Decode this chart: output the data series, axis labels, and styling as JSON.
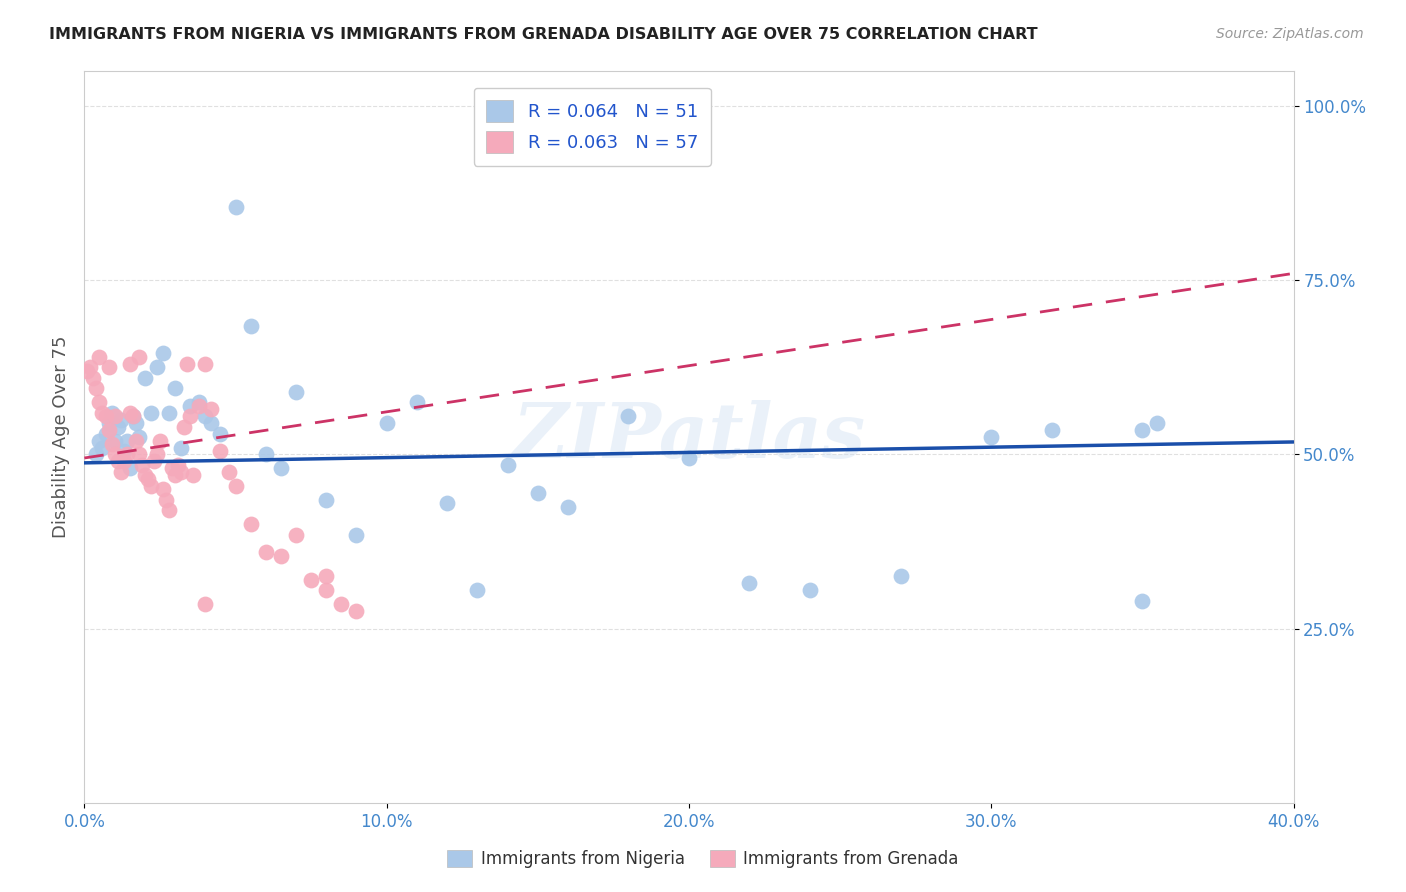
{
  "title": "IMMIGRANTS FROM NIGERIA VS IMMIGRANTS FROM GRENADA DISABILITY AGE OVER 75 CORRELATION CHART",
  "source": "Source: ZipAtlas.com",
  "ylabel": "Disability Age Over 75",
  "xlim": [
    0.0,
    0.4
  ],
  "ylim": [
    0.0,
    1.05
  ],
  "xtick_labels": [
    "0.0%",
    "10.0%",
    "20.0%",
    "30.0%",
    "40.0%"
  ],
  "xtick_values": [
    0.0,
    0.1,
    0.2,
    0.3,
    0.4
  ],
  "ytick_labels": [
    "25.0%",
    "50.0%",
    "75.0%",
    "100.0%"
  ],
  "ytick_values": [
    0.25,
    0.5,
    0.75,
    1.0
  ],
  "nigeria_color": "#aac8e8",
  "nigeria_line_color": "#1a4faa",
  "grenada_color": "#f5aabb",
  "grenada_line_color": "#cc3366",
  "nigeria_R": 0.064,
  "nigeria_N": 51,
  "grenada_R": 0.063,
  "grenada_N": 57,
  "nigeria_line_x0": 0.0,
  "nigeria_line_x1": 0.4,
  "nigeria_line_y0": 0.488,
  "nigeria_line_y1": 0.518,
  "grenada_line_x0": 0.0,
  "grenada_line_x1": 0.4,
  "grenada_line_y0": 0.495,
  "grenada_line_y1": 0.76,
  "nigeria_scatter_x": [
    0.004,
    0.005,
    0.006,
    0.007,
    0.008,
    0.009,
    0.01,
    0.011,
    0.012,
    0.013,
    0.014,
    0.015,
    0.016,
    0.017,
    0.018,
    0.02,
    0.022,
    0.024,
    0.026,
    0.028,
    0.03,
    0.032,
    0.035,
    0.038,
    0.04,
    0.042,
    0.045,
    0.05,
    0.055,
    0.06,
    0.065,
    0.07,
    0.08,
    0.09,
    0.1,
    0.11,
    0.12,
    0.13,
    0.14,
    0.15,
    0.16,
    0.18,
    0.2,
    0.22,
    0.24,
    0.27,
    0.3,
    0.32,
    0.35,
    0.35,
    0.355
  ],
  "nigeria_scatter_y": [
    0.5,
    0.52,
    0.51,
    0.53,
    0.545,
    0.56,
    0.52,
    0.54,
    0.55,
    0.505,
    0.52,
    0.48,
    0.555,
    0.545,
    0.525,
    0.61,
    0.56,
    0.625,
    0.645,
    0.56,
    0.595,
    0.51,
    0.57,
    0.575,
    0.555,
    0.545,
    0.53,
    0.855,
    0.685,
    0.5,
    0.48,
    0.59,
    0.435,
    0.385,
    0.545,
    0.575,
    0.43,
    0.305,
    0.485,
    0.445,
    0.425,
    0.555,
    0.495,
    0.315,
    0.305,
    0.325,
    0.525,
    0.535,
    0.29,
    0.535,
    0.545
  ],
  "grenada_scatter_x": [
    0.001,
    0.002,
    0.003,
    0.004,
    0.005,
    0.005,
    0.006,
    0.007,
    0.008,
    0.008,
    0.009,
    0.01,
    0.01,
    0.011,
    0.012,
    0.013,
    0.014,
    0.015,
    0.015,
    0.016,
    0.017,
    0.018,
    0.018,
    0.019,
    0.02,
    0.021,
    0.022,
    0.023,
    0.024,
    0.025,
    0.026,
    0.027,
    0.028,
    0.029,
    0.03,
    0.031,
    0.032,
    0.033,
    0.034,
    0.035,
    0.036,
    0.038,
    0.04,
    0.042,
    0.045,
    0.048,
    0.05,
    0.055,
    0.06,
    0.065,
    0.07,
    0.075,
    0.08,
    0.085,
    0.09,
    0.04,
    0.08
  ],
  "grenada_scatter_y": [
    0.62,
    0.625,
    0.61,
    0.595,
    0.575,
    0.64,
    0.56,
    0.555,
    0.535,
    0.625,
    0.515,
    0.5,
    0.555,
    0.49,
    0.475,
    0.49,
    0.5,
    0.56,
    0.63,
    0.555,
    0.52,
    0.5,
    0.64,
    0.485,
    0.47,
    0.465,
    0.455,
    0.49,
    0.5,
    0.52,
    0.45,
    0.435,
    0.42,
    0.48,
    0.47,
    0.485,
    0.475,
    0.54,
    0.63,
    0.555,
    0.47,
    0.57,
    0.63,
    0.565,
    0.505,
    0.475,
    0.455,
    0.4,
    0.36,
    0.355,
    0.385,
    0.32,
    0.305,
    0.285,
    0.275,
    0.285,
    0.325
  ],
  "watermark": "ZIPatlas",
  "background_color": "#ffffff",
  "grid_color": "#dddddd",
  "title_color": "#222222",
  "tick_label_color": "#4488cc"
}
